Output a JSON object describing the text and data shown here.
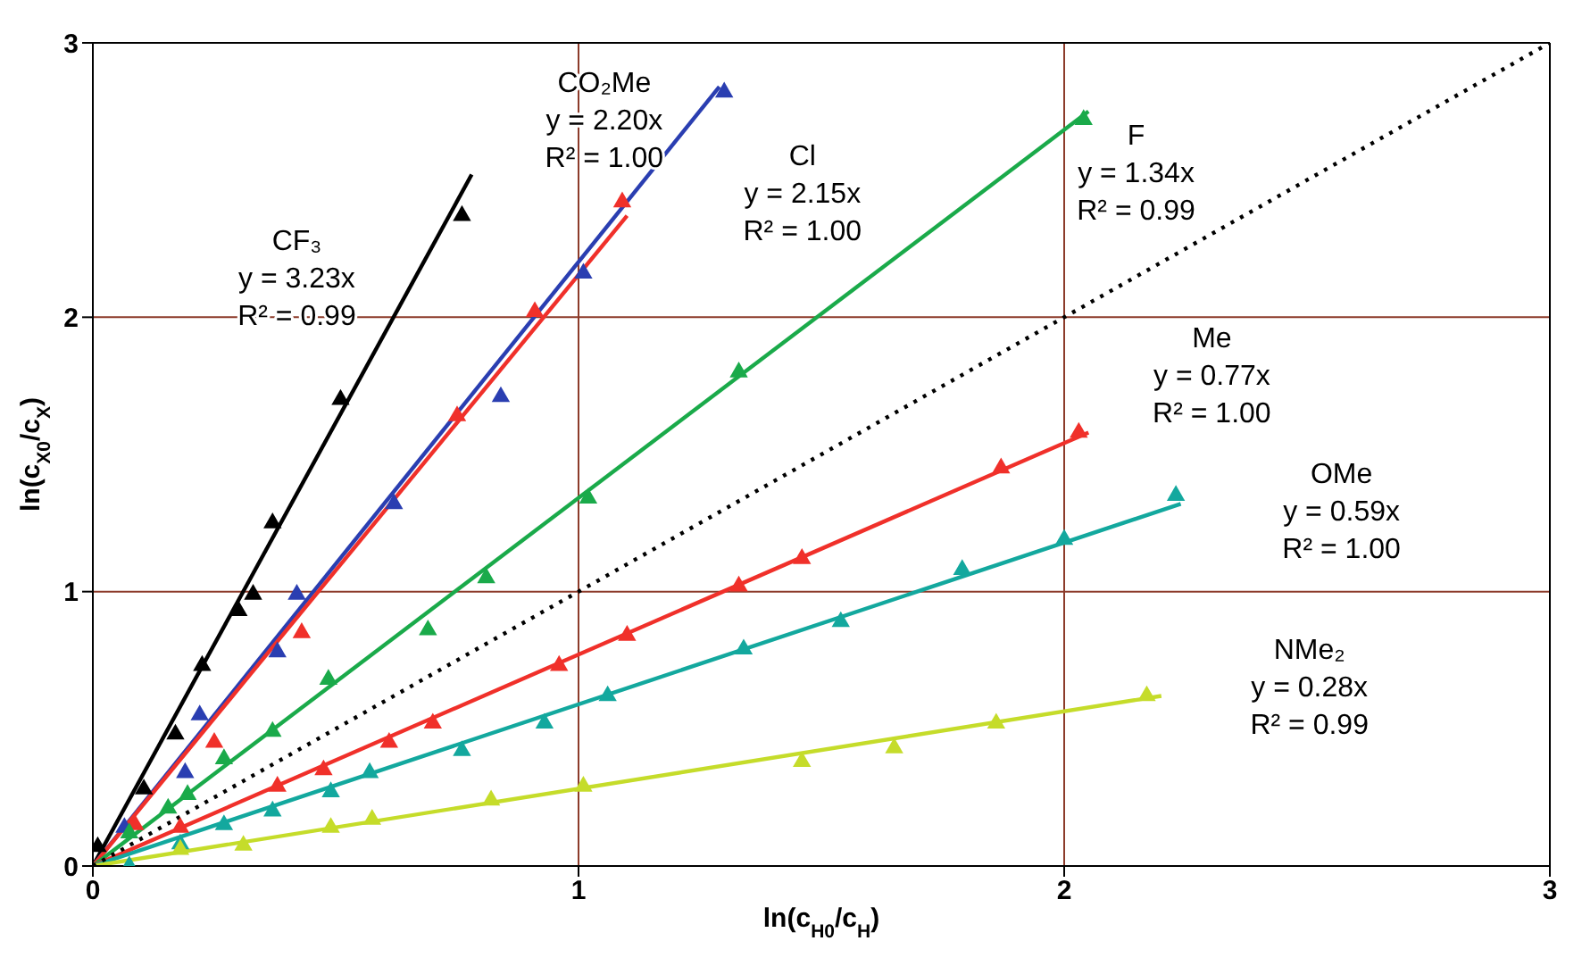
{
  "chart_data": {
    "type": "scatter",
    "xlabel": "ln(c$_{H0}$/c$_{H}$)",
    "ylabel": "ln(c$_{X0}$/c$_{X}$)",
    "xlim": [
      0,
      3
    ],
    "ylim": [
      0,
      3
    ],
    "xticks": [
      0,
      1,
      2,
      3
    ],
    "yticks": [
      0,
      1,
      2,
      3
    ],
    "grid": true,
    "series": [
      {
        "type": "scatter",
        "marker": "triangle",
        "color": "#000000",
        "x": [
          0.01,
          0.105,
          0.17,
          0.225,
          0.3,
          0.33,
          0.37,
          0.51,
          0.76
        ],
        "values": [
          0.07,
          0.28,
          0.48,
          0.73,
          0.93,
          0.99,
          1.25,
          1.7,
          2.37
        ]
      },
      {
        "type": "line",
        "marker": "none",
        "color": "#000000",
        "x": [
          0,
          0.78
        ],
        "values": [
          0,
          2.52
        ]
      },
      {
        "type": "scatter",
        "marker": "triangle",
        "color": "#2a3eb1",
        "x": [
          0.065,
          0.19,
          0.22,
          0.38,
          0.42,
          0.62,
          0.84,
          1.01,
          1.3
        ],
        "values": [
          0.14,
          0.34,
          0.55,
          0.78,
          0.99,
          1.32,
          1.71,
          2.16,
          2.82
        ]
      },
      {
        "type": "line",
        "marker": "none",
        "color": "#2a3eb1",
        "x": [
          0,
          1.29
        ],
        "values": [
          0,
          2.84
        ]
      },
      {
        "type": "scatter",
        "marker": "triangle",
        "color": "#f0302a",
        "x": [
          0.087,
          0.25,
          0.43,
          0.75,
          0.91,
          1.09
        ],
        "values": [
          0.15,
          0.45,
          0.85,
          1.64,
          2.02,
          2.42
        ]
      },
      {
        "type": "line",
        "marker": "none",
        "color": "#f0302a",
        "x": [
          0,
          1.1
        ],
        "values": [
          0,
          2.37
        ]
      },
      {
        "type": "scatter",
        "marker": "triangle",
        "color": "#1aaa4a",
        "x": [
          0.075,
          0.155,
          0.195,
          0.27,
          0.37,
          0.485,
          0.69,
          0.81,
          1.02,
          1.33,
          2.04
        ],
        "values": [
          0.12,
          0.21,
          0.26,
          0.39,
          0.49,
          0.68,
          0.86,
          1.05,
          1.34,
          1.8,
          2.72
        ]
      },
      {
        "type": "line",
        "marker": "none",
        "color": "#1aaa4a",
        "x": [
          0,
          2.05
        ],
        "values": [
          0,
          2.75
        ]
      },
      {
        "type": "scatter",
        "marker": "triangle",
        "color": "#f0302a",
        "x": [
          0.18,
          0.38,
          0.475,
          0.61,
          0.7,
          0.96,
          1.1,
          1.33,
          1.46,
          1.87,
          2.03
        ],
        "values": [
          0.14,
          0.29,
          0.35,
          0.45,
          0.52,
          0.73,
          0.84,
          1.02,
          1.12,
          1.45,
          1.58
        ]
      },
      {
        "type": "line",
        "marker": "none",
        "color": "#f0302a",
        "x": [
          0,
          2.05
        ],
        "values": [
          0,
          1.58
        ]
      },
      {
        "type": "scatter",
        "marker": "triangle",
        "color": "#13a89e",
        "x": [
          0.075,
          0.18,
          0.27,
          0.37,
          0.49,
          0.57,
          0.76,
          0.93,
          1.06,
          1.34,
          1.54,
          1.79,
          2.0,
          2.23
        ],
        "values": [
          0.0,
          0.08,
          0.15,
          0.2,
          0.27,
          0.34,
          0.42,
          0.52,
          0.62,
          0.79,
          0.89,
          1.08,
          1.19,
          1.35
        ]
      },
      {
        "type": "line",
        "marker": "none",
        "color": "#13a89e",
        "x": [
          0,
          2.24
        ],
        "values": [
          0,
          1.32
        ]
      },
      {
        "type": "scatter",
        "marker": "triangle",
        "color": "#c5dc2a",
        "x": [
          0.18,
          0.31,
          0.49,
          0.575,
          0.82,
          1.01,
          1.46,
          1.65,
          1.86,
          2.17
        ],
        "values": [
          0.06,
          0.075,
          0.14,
          0.17,
          0.24,
          0.29,
          0.38,
          0.43,
          0.52,
          0.62
        ]
      },
      {
        "type": "line",
        "marker": "none",
        "color": "#c5dc2a",
        "x": [
          0,
          2.2
        ],
        "values": [
          0,
          0.62
        ]
      },
      {
        "type": "line",
        "marker": "none",
        "line_style": "dotted",
        "color": "#000000",
        "x": [
          0,
          3
        ],
        "values": [
          0,
          3
        ]
      }
    ],
    "annotations": [
      "CF₃\ny = 3.23x\nR² = 0.99",
      "CO₂Me\ny = 2.20x\nR² = 1.00",
      "Cl\ny = 2.15x\nR² = 1.00",
      "F\ny = 1.34x\nR² = 0.99",
      "Me\ny = 0.77x\nR² = 1.00",
      "OMe\ny = 0.59x\nR² = 1.00",
      "NMe₂\ny = 0.28x\nR² = 0.99"
    ]
  }
}
